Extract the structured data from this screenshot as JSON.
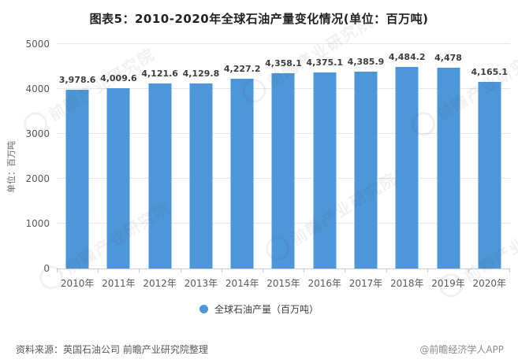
{
  "title": "图表5：2010-2020年全球石油产量变化情况(单位：百万吨)",
  "chart_data": {
    "type": "bar",
    "categories": [
      "2010年",
      "2011年",
      "2012年",
      "2013年",
      "2014年",
      "2015年",
      "2016年",
      "2017年",
      "2018年",
      "2019年",
      "2020年"
    ],
    "values": [
      3978.6,
      4009.6,
      4121.6,
      4129.8,
      4227.2,
      4358.1,
      4375.1,
      4385.9,
      4484.2,
      4478,
      4165.1
    ],
    "value_labels": [
      "3,978.6",
      "4,009.6",
      "4,121.6",
      "4,129.8",
      "4,227.2",
      "4,358.1",
      "4,375.1",
      "4,385.9",
      "4,484.2",
      "4,478",
      "4,165.1"
    ],
    "title": "图表5：2010-2020年全球石油产量变化情况(单位：百万吨)",
    "xlabel": "",
    "ylabel": "单位：百万吨",
    "ylim": [
      0,
      5000
    ],
    "yticks": [
      0,
      1000,
      2000,
      3000,
      4000,
      5000
    ],
    "grid": true,
    "legend": "全球石油产量（百万吨）",
    "legend_position": "bottom",
    "bar_color": "#4D96D8"
  },
  "footer": {
    "source": "资料来源：英国石油公司 前瞻产业研究院整理",
    "credit": "@前瞻经济学人APP"
  },
  "watermark": {
    "text": "前瞻产业研究院"
  }
}
